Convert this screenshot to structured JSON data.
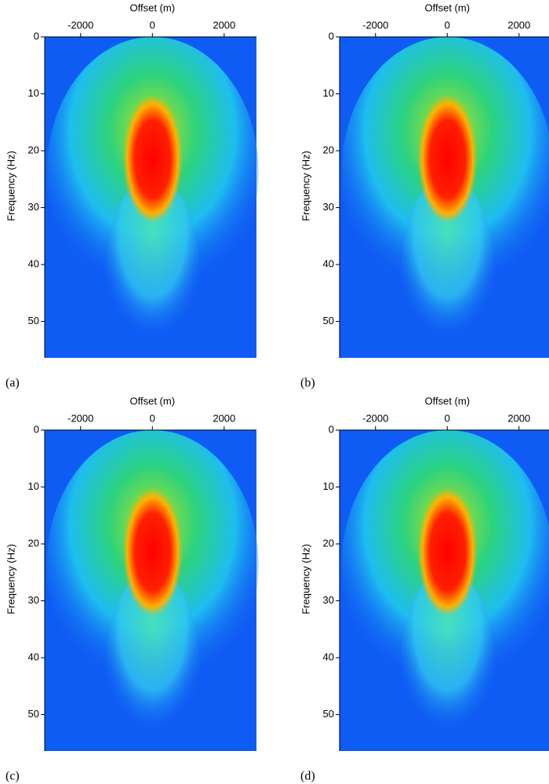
{
  "chart_data": [
    {
      "type": "image",
      "panel": "(a)",
      "xlabel": "Offset (m)",
      "ylabel": "Frequency (Hz)",
      "xlim": [
        -3000,
        2900
      ],
      "ylim": [
        0,
        56.4
      ],
      "xticks": [
        -2000,
        0,
        2000
      ],
      "yticks": [
        0,
        10,
        20,
        30,
        40,
        50
      ]
    },
    {
      "type": "image",
      "panel": "(b)",
      "xlabel": "Offset (m)",
      "ylabel": "Frequency (Hz)",
      "xlim": [
        -3000,
        2900
      ],
      "ylim": [
        0,
        56.4
      ],
      "xticks": [
        -2000,
        0,
        2000
      ],
      "yticks": [
        0,
        10,
        20,
        30,
        40,
        50
      ]
    },
    {
      "type": "image",
      "panel": "(c)",
      "xlabel": "Offset (m)",
      "ylabel": "Frequency (Hz)",
      "xlim": [
        -3000,
        2900
      ],
      "ylim": [
        0,
        56.4
      ],
      "xticks": [
        -2000,
        0,
        2000
      ],
      "yticks": [
        0,
        10,
        20,
        30,
        40,
        50
      ]
    },
    {
      "type": "image",
      "panel": "(d)",
      "xlabel": "Offset (m)",
      "ylabel": "Frequency (Hz)",
      "xlim": [
        -3000,
        2900
      ],
      "ylim": [
        0,
        56.4
      ],
      "xticks": [
        -2000,
        0,
        2000
      ],
      "yticks": [
        0,
        10,
        20,
        30,
        40,
        50
      ]
    }
  ]
}
